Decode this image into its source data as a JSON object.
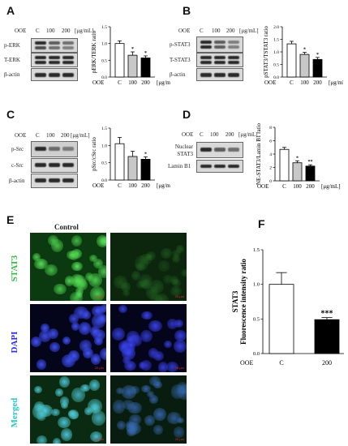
{
  "panels": {
    "A": {
      "letter": "A",
      "ooe": "OOE",
      "conds": [
        "C",
        "100",
        "200"
      ],
      "unit": "[μg/mL]",
      "blots": [
        "p-ERK",
        "T-ERK",
        "β-actin"
      ]
    },
    "B": {
      "letter": "B",
      "ooe": "OOE",
      "conds": [
        "C",
        "100",
        "200"
      ],
      "unit": "[μg/mL]",
      "blots": [
        "p-STAT3",
        "T-STAT3",
        "β-actin"
      ]
    },
    "C": {
      "letter": "C",
      "ooe": "OOE",
      "conds": [
        "C",
        "100",
        "200"
      ],
      "unit": "[μg/mL]",
      "blots": [
        "p-Src",
        "c-Src",
        "β-actin"
      ]
    },
    "D": {
      "letter": "D",
      "ooe": "OOE",
      "conds": [
        "C",
        "100",
        "200"
      ],
      "unit": "[μg/mL]",
      "blots": [
        "Nuclear STAT3",
        "Lamin B1"
      ]
    },
    "E": {
      "letter": "E",
      "column_title": "Control",
      "rows": [
        "STAT3",
        "DAPI",
        "Merged"
      ],
      "scale": "20 μm"
    },
    "F": {
      "letter": "F"
    }
  },
  "chart_data": [
    {
      "type": "bar",
      "id": "A",
      "categories": [
        "C",
        "100",
        "200"
      ],
      "values": [
        1.0,
        0.65,
        0.57
      ],
      "errors": [
        0.08,
        0.1,
        0.06
      ],
      "significance": [
        "",
        "*",
        "*"
      ],
      "ylabel": "pERK/TERK ratio",
      "xprefix": "OOE",
      "xunit": "[μg/mL]",
      "ylim": [
        0,
        1.5
      ],
      "yticks": [
        0.0,
        0.5,
        1.0,
        1.5
      ],
      "colors": [
        "#ffffff",
        "#c8c8c8",
        "#000000"
      ]
    },
    {
      "type": "bar",
      "id": "B",
      "categories": [
        "C",
        "100",
        "200"
      ],
      "values": [
        1.32,
        0.9,
        0.7
      ],
      "errors": [
        0.1,
        0.08,
        0.08
      ],
      "significance": [
        "",
        "*",
        "*"
      ],
      "ylabel": "pSTAT3/TSTAT3 ratio",
      "xprefix": "OOE",
      "xunit": "[μg/mL]",
      "ylim": [
        0,
        2.0
      ],
      "yticks": [
        0.0,
        0.5,
        1.0,
        1.5,
        2.0
      ],
      "colors": [
        "#ffffff",
        "#c8c8c8",
        "#000000"
      ]
    },
    {
      "type": "bar",
      "id": "C",
      "categories": [
        "C",
        "100",
        "200"
      ],
      "values": [
        1.05,
        0.68,
        0.6
      ],
      "errors": [
        0.18,
        0.15,
        0.07
      ],
      "significance": [
        "",
        "",
        "*"
      ],
      "ylabel": "pSrc/cSrc ratio",
      "xprefix": "OOE",
      "xunit": "[μg/mL]",
      "ylim": [
        0,
        1.5
      ],
      "yticks": [
        0.0,
        0.5,
        1.0,
        1.5
      ],
      "colors": [
        "#ffffff",
        "#c8c8c8",
        "#000000"
      ]
    },
    {
      "type": "bar",
      "id": "D",
      "categories": [
        "C",
        "100",
        "200"
      ],
      "values": [
        4.7,
        2.7,
        2.2
      ],
      "errors": [
        0.3,
        0.3,
        0.2
      ],
      "significance": [
        "",
        "*",
        "**"
      ],
      "ylabel": "NE-STAT3/Lamin B1 ratio",
      "xprefix": "OOE",
      "xunit": "[μg/mL]",
      "ylim": [
        0,
        8
      ],
      "yticks": [
        0,
        2,
        4,
        6,
        8
      ],
      "colors": [
        "#ffffff",
        "#c8c8c8",
        "#000000"
      ]
    },
    {
      "type": "bar",
      "id": "F",
      "categories": [
        "C",
        "200"
      ],
      "values": [
        1.0,
        0.49
      ],
      "errors": [
        0.17,
        0.03
      ],
      "significance": [
        "",
        "***"
      ],
      "ylabel": "STAT3 Fluorescence intensity ratio",
      "xprefix": "OOE",
      "xunit": "[μg/mL]",
      "ylim": [
        0,
        1.5
      ],
      "yticks": [
        0.0,
        0.5,
        1.0,
        1.5
      ],
      "colors": [
        "#ffffff",
        "#000000"
      ]
    }
  ]
}
